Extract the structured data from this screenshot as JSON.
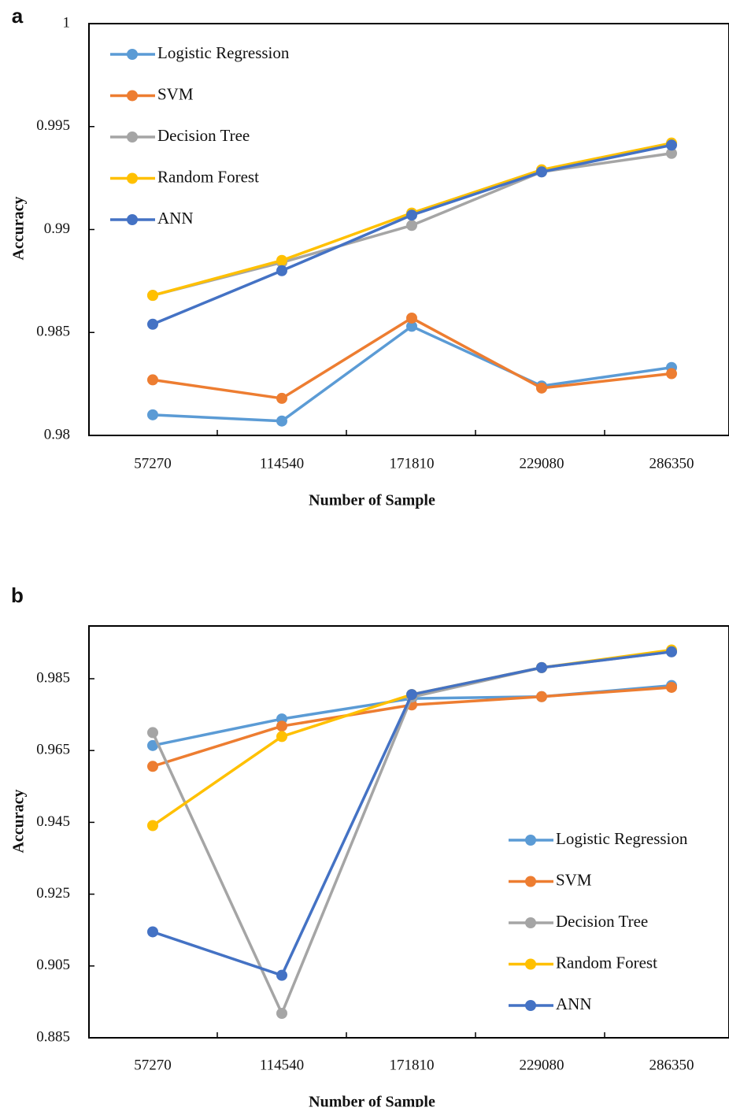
{
  "chart_data": [
    {
      "panel_label": "a",
      "type": "line",
      "x": [
        "57270",
        "114540",
        "171810",
        "229080",
        "286350"
      ],
      "yticks": [
        "1",
        "0.995",
        "0.99",
        "0.985",
        "0.98"
      ],
      "ylim": [
        0.98,
        1.0
      ],
      "xlabel": "Number of  Sample",
      "ylabel": "Accuracy",
      "legend_position": "top-left",
      "series": [
        {
          "name": "Logistic Regression",
          "color": "#5B9BD5",
          "values": [
            0.981,
            0.9807,
            0.9853,
            0.9824,
            0.9833
          ]
        },
        {
          "name": "SVM",
          "color": "#ED7D31",
          "values": [
            0.9827,
            0.9818,
            0.9857,
            0.9823,
            0.983
          ]
        },
        {
          "name": "Decision Tree",
          "color": "#A5A5A5",
          "values": [
            0.9868,
            0.9884,
            0.9902,
            0.9928,
            0.9937
          ]
        },
        {
          "name": "Random Forest",
          "color": "#FFC000",
          "values": [
            0.9868,
            0.9885,
            0.9908,
            0.9929,
            0.9942
          ]
        },
        {
          "name": "ANN",
          "color": "#4472C4",
          "values": [
            0.9854,
            0.988,
            0.9907,
            0.9928,
            0.9941
          ]
        }
      ]
    },
    {
      "panel_label": "b",
      "type": "line",
      "x": [
        "57270",
        "114540",
        "171810",
        "229080",
        "286350"
      ],
      "yticks": [
        "0.985",
        "0.965",
        "0.945",
        "0.925",
        "0.905",
        "0.885"
      ],
      "ylim": [
        0.885,
        1.0
      ],
      "xlabel": "Number of Sample",
      "ylabel": "Accuracy",
      "legend_position": "bottom-right",
      "series": [
        {
          "name": "Logistic Regression",
          "color": "#5B9BD5",
          "values": [
            0.9664,
            0.9738,
            0.9795,
            0.98,
            0.9831
          ]
        },
        {
          "name": "SVM",
          "color": "#ED7D31",
          "values": [
            0.9606,
            0.9718,
            0.9777,
            0.98,
            0.9826
          ]
        },
        {
          "name": "Decision Tree",
          "color": "#A5A5A5",
          "values": [
            0.97,
            0.8918,
            0.9799,
            0.9881,
            0.9925
          ]
        },
        {
          "name": "Random Forest",
          "color": "#FFC000",
          "values": [
            0.9441,
            0.9689,
            0.9806,
            0.9881,
            0.993
          ]
        },
        {
          "name": "ANN",
          "color": "#4472C4",
          "values": [
            0.9145,
            0.9024,
            0.9806,
            0.9881,
            0.9925
          ]
        }
      ]
    }
  ]
}
